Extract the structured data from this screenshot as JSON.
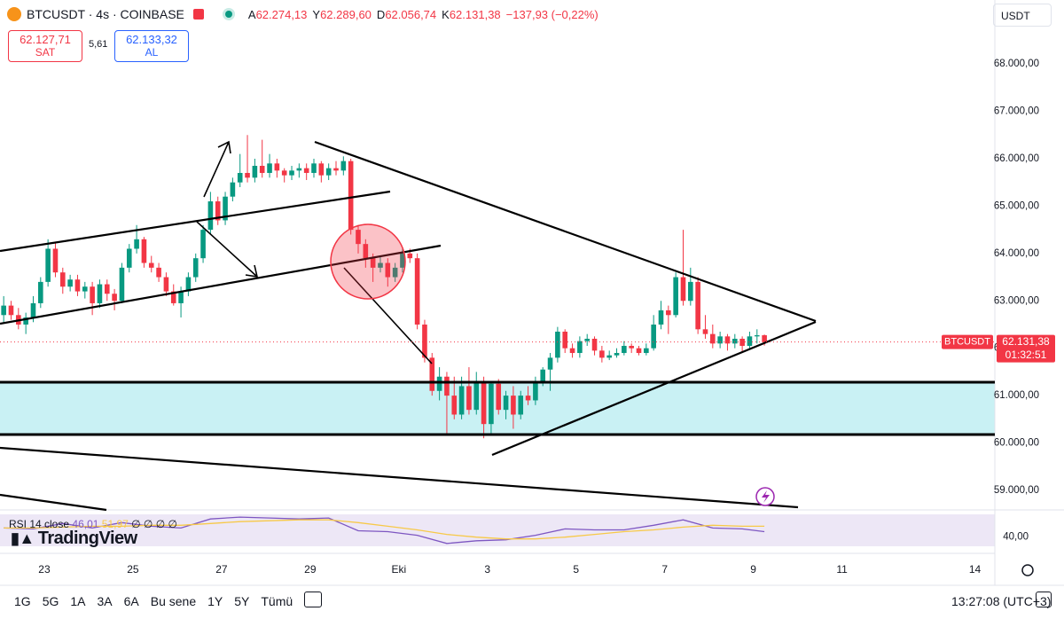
{
  "header": {
    "symbol": "BTCUSDT · 4s · COINBASE",
    "ohlc_labels": [
      "A",
      "Y",
      "D",
      "K"
    ],
    "ohlc_values": [
      "62.274,13",
      "62.289,60",
      "62.056,74",
      "62.131,38"
    ],
    "change": "−137,93 (−0,22%)",
    "sell_price": "62.127,71",
    "sell": "SAT",
    "spread": "5,61",
    "buy_price": "62.133,32",
    "buy": "AL",
    "currency": "USDT"
  },
  "logo": "TradingView",
  "toolbar": {
    "ranges": [
      "1G",
      "5G",
      "1A",
      "3A",
      "6A",
      "Bu sene",
      "1Y",
      "5Y",
      "Tümü"
    ],
    "clock": "13:27:08 (UTC+3)"
  },
  "chart_data": [
    {
      "type": "candlestick",
      "up_color": "#089981",
      "down_color": "#f23645",
      "xlim": [
        -0.5,
        134.2
      ],
      "ylim": [
        58625,
        69350
      ],
      "xticks": [
        {
          "value": 5.5,
          "label": "23"
        },
        {
          "value": 17.5,
          "label": "25"
        },
        {
          "value": 29.5,
          "label": "27"
        },
        {
          "value": 41.5,
          "label": "29"
        },
        {
          "value": 53.5,
          "label": "Eki"
        },
        {
          "value": 65.5,
          "label": "3"
        },
        {
          "value": 77.5,
          "label": "5"
        },
        {
          "value": 89.5,
          "label": "7"
        },
        {
          "value": 101.5,
          "label": "9"
        },
        {
          "value": 113.5,
          "label": "11"
        },
        {
          "value": 131.5,
          "label": "14"
        }
      ],
      "yticks": [
        {
          "value": 59000,
          "label": "59.000,00"
        },
        {
          "value": 60000,
          "label": "60.000,00"
        },
        {
          "value": 61000,
          "label": "61.000,00"
        },
        {
          "value": 62000,
          "label": "62.000,00"
        },
        {
          "value": 63000,
          "label": "63.000,00"
        },
        {
          "value": 64000,
          "label": "64.000,00"
        },
        {
          "value": 65000,
          "label": "65.000,00"
        },
        {
          "value": 66000,
          "label": "66.000,00"
        },
        {
          "value": 67000,
          "label": "67.000,00"
        },
        {
          "value": 68000,
          "label": "68.000,00"
        }
      ],
      "grid": false,
      "last_price": {
        "value": 62131.38,
        "label": "62.131,38"
      },
      "symbol_tag": "BTCUSDT",
      "countdown": "01:32:51",
      "ohlc": [
        [
          62700,
          63100,
          62550,
          62900
        ],
        [
          62900,
          63000,
          62600,
          62700
        ],
        [
          62700,
          62850,
          62400,
          62500
        ],
        [
          62500,
          62750,
          62300,
          62650
        ],
        [
          62650,
          63100,
          62550,
          62950
        ],
        [
          62950,
          63500,
          62850,
          63400
        ],
        [
          63400,
          64300,
          63300,
          64100
        ],
        [
          64100,
          64250,
          63500,
          63600
        ],
        [
          63600,
          63700,
          63150,
          63300
        ],
        [
          63300,
          63550,
          63200,
          63450
        ],
        [
          63450,
          63550,
          63100,
          63200
        ],
        [
          63200,
          63400,
          63050,
          63300
        ],
        [
          63300,
          63400,
          62700,
          62950
        ],
        [
          62950,
          63450,
          62850,
          63350
        ],
        [
          63350,
          63450,
          63000,
          63150
        ],
        [
          63150,
          63250,
          62800,
          63000
        ],
        [
          63000,
          63800,
          62950,
          63700
        ],
        [
          63700,
          64200,
          63600,
          64100
        ],
        [
          64100,
          64600,
          64000,
          64300
        ],
        [
          64300,
          64350,
          63700,
          63800
        ],
        [
          63800,
          63950,
          63600,
          63700
        ],
        [
          63700,
          63800,
          63400,
          63500
        ],
        [
          63500,
          63600,
          63100,
          63200
        ],
        [
          63200,
          63350,
          62900,
          62950
        ],
        [
          62950,
          63300,
          62650,
          63200
        ],
        [
          63200,
          63600,
          63100,
          63500
        ],
        [
          63500,
          64000,
          63400,
          63900
        ],
        [
          63900,
          64600,
          63800,
          64500
        ],
        [
          64500,
          65300,
          64400,
          65100
        ],
        [
          65100,
          65200,
          64600,
          64700
        ],
        [
          64700,
          65300,
          64600,
          65200
        ],
        [
          65200,
          65600,
          65100,
          65500
        ],
        [
          65500,
          66100,
          65400,
          65700
        ],
        [
          65700,
          66500,
          65500,
          65600
        ],
        [
          65600,
          66000,
          65500,
          65850
        ],
        [
          65850,
          66400,
          65600,
          65700
        ],
        [
          65700,
          66100,
          65600,
          65900
        ],
        [
          65900,
          66000,
          65600,
          65750
        ],
        [
          65750,
          65800,
          65500,
          65650
        ],
        [
          65650,
          65850,
          65550,
          65750
        ],
        [
          65750,
          65900,
          65600,
          65800
        ],
        [
          65800,
          65900,
          65550,
          65700
        ],
        [
          65700,
          66000,
          65600,
          65900
        ],
        [
          65900,
          65950,
          65500,
          65650
        ],
        [
          65650,
          65900,
          65550,
          65800
        ],
        [
          65800,
          65950,
          65650,
          65750
        ],
        [
          65750,
          66050,
          65650,
          65950
        ],
        [
          65950,
          66000,
          64400,
          64500
        ],
        [
          64500,
          64600,
          64000,
          64200
        ],
        [
          64200,
          64300,
          63700,
          63900
        ],
        [
          63900,
          64000,
          63400,
          63700
        ],
        [
          63700,
          63950,
          63600,
          63800
        ],
        [
          63800,
          63900,
          63300,
          63500
        ],
        [
          63500,
          63800,
          63400,
          63700
        ],
        [
          63700,
          64100,
          63600,
          64000
        ],
        [
          64000,
          64100,
          63800,
          63900
        ],
        [
          63900,
          64000,
          62400,
          62500
        ],
        [
          62500,
          62600,
          61700,
          61800
        ],
        [
          61800,
          61900,
          61000,
          61100
        ],
        [
          61100,
          61600,
          60900,
          61400
        ],
        [
          61400,
          61500,
          60200,
          61000
        ],
        [
          61000,
          61400,
          60500,
          60600
        ],
        [
          60600,
          61400,
          60500,
          61200
        ],
        [
          61200,
          61600,
          60600,
          60700
        ],
        [
          60700,
          61500,
          60600,
          61300
        ],
        [
          61300,
          61400,
          60100,
          60400
        ],
        [
          60400,
          61300,
          60200,
          61250
        ],
        [
          61250,
          61350,
          60600,
          60700
        ],
        [
          60700,
          61100,
          60500,
          61000
        ],
        [
          61000,
          61200,
          60300,
          60600
        ],
        [
          60600,
          61100,
          60500,
          61000
        ],
        [
          61000,
          61200,
          60800,
          60900
        ],
        [
          60900,
          61400,
          60800,
          61300
        ],
        [
          61300,
          61600,
          61200,
          61550
        ],
        [
          61550,
          61900,
          61100,
          61800
        ],
        [
          61800,
          62450,
          61700,
          62350
        ],
        [
          62350,
          62400,
          61900,
          62000
        ],
        [
          62000,
          62100,
          61800,
          61900
        ],
        [
          61900,
          62250,
          61800,
          62150
        ],
        [
          62150,
          62300,
          62050,
          62200
        ],
        [
          62200,
          62250,
          61850,
          61950
        ],
        [
          61950,
          62050,
          61700,
          61800
        ],
        [
          61800,
          61950,
          61750,
          61850
        ],
        [
          61850,
          62000,
          61800,
          61900
        ],
        [
          61900,
          62150,
          61850,
          62050
        ],
        [
          62050,
          62100,
          61900,
          62000
        ],
        [
          62000,
          62050,
          61850,
          61900
        ],
        [
          61900,
          62100,
          61850,
          62000
        ],
        [
          62000,
          62700,
          61950,
          62500
        ],
        [
          62500,
          63000,
          62400,
          62800
        ],
        [
          62800,
          62900,
          62300,
          62700
        ],
        [
          62700,
          63600,
          62650,
          63500
        ],
        [
          63500,
          64500,
          62900,
          63000
        ],
        [
          63000,
          63700,
          62900,
          63400
        ],
        [
          63400,
          63500,
          62300,
          62400
        ],
        [
          62400,
          62700,
          62200,
          62300
        ],
        [
          62300,
          62500,
          62000,
          62100
        ],
        [
          62100,
          62350,
          62000,
          62250
        ],
        [
          62250,
          62300,
          61950,
          62100
        ],
        [
          62100,
          62300,
          62000,
          62200
        ],
        [
          62200,
          62250,
          61900,
          62050
        ],
        [
          62050,
          62350,
          62000,
          62250
        ],
        [
          62250,
          62400,
          62100,
          62274.13
        ],
        [
          62274.13,
          62289.6,
          62056.74,
          62131.38
        ]
      ]
    },
    {
      "type": "line",
      "title": "RSI 14 close",
      "value_texts": [
        "46,01",
        "51,97"
      ],
      "extra": "∅ ∅ ∅ ∅",
      "xlim": [
        -0.5,
        134.2
      ],
      "ylim": [
        26,
        67
      ],
      "yticks": [
        {
          "value": 40,
          "label": "40,00"
        }
      ],
      "x": [
        0,
        4,
        8,
        12,
        16,
        20,
        24,
        28,
        32,
        36,
        40,
        44,
        48,
        52,
        56,
        60,
        64,
        68,
        72,
        76,
        80,
        84,
        88,
        92,
        96,
        100,
        103
      ],
      "series": [
        {
          "color": "#7e57c2",
          "values": [
            50,
            49,
            55,
            50,
            56,
            52,
            50,
            60,
            62,
            61,
            60,
            61,
            47,
            46,
            42,
            33,
            36,
            37,
            42,
            49,
            48,
            48,
            53,
            59,
            50,
            49,
            46.01
          ]
        },
        {
          "color": "#f7c948",
          "values": [
            50,
            50,
            51,
            52,
            52,
            53,
            53,
            55,
            57,
            58,
            59,
            59,
            56,
            52,
            48,
            43,
            40,
            38,
            38,
            40,
            43,
            46,
            48,
            51,
            53,
            52,
            51.97
          ]
        }
      ]
    }
  ]
}
